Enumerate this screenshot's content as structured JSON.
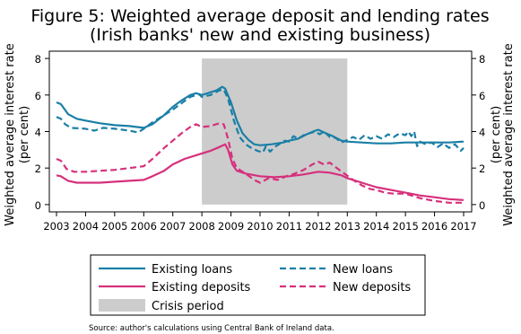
{
  "chart_data": {
    "type": "line",
    "title": "Figure 5: Weighted average deposit and lending rates",
    "subtitle": "(Irish banks' new and existing business)",
    "ylabel_left": "Weighted average interest rate",
    "ylabel_left_unit": "(per cent)",
    "ylabel_right": "Weighted average interest rate",
    "ylabel_right_unit": "(per cent)",
    "xlim": [
      2003,
      2017
    ],
    "ylim": [
      -0.4,
      8.4
    ],
    "y_ticks": [
      0,
      2,
      4,
      6,
      8
    ],
    "x_ticks": [
      2003,
      2004,
      2005,
      2006,
      2007,
      2008,
      2009,
      2010,
      2011,
      2012,
      2013,
      2014,
      2015,
      2016,
      2017
    ],
    "grid": false,
    "shaded_region": {
      "label": "Crisis period",
      "x": [
        2008,
        2013
      ],
      "y": [
        0,
        8
      ],
      "color": "#cccccc"
    },
    "legend_position": "bottom",
    "series": [
      {
        "name": "Existing loans",
        "color": "#1a7fa6",
        "dash": false,
        "points": [
          [
            2003.0,
            5.6
          ],
          [
            2003.15,
            5.5
          ],
          [
            2003.4,
            4.95
          ],
          [
            2003.7,
            4.7
          ],
          [
            2004.0,
            4.6
          ],
          [
            2004.5,
            4.45
          ],
          [
            2005.0,
            4.35
          ],
          [
            2005.5,
            4.3
          ],
          [
            2006.0,
            4.2
          ],
          [
            2006.3,
            4.4
          ],
          [
            2006.7,
            4.9
          ],
          [
            2007.0,
            5.35
          ],
          [
            2007.3,
            5.7
          ],
          [
            2007.6,
            6.0
          ],
          [
            2007.8,
            6.1
          ],
          [
            2008.0,
            6.0
          ],
          [
            2008.2,
            6.1
          ],
          [
            2008.5,
            6.25
          ],
          [
            2008.7,
            6.45
          ],
          [
            2008.8,
            6.35
          ],
          [
            2009.0,
            5.6
          ],
          [
            2009.2,
            4.6
          ],
          [
            2009.4,
            3.9
          ],
          [
            2009.6,
            3.55
          ],
          [
            2009.8,
            3.3
          ],
          [
            2010.0,
            3.25
          ],
          [
            2010.4,
            3.3
          ],
          [
            2010.8,
            3.4
          ],
          [
            2011.0,
            3.5
          ],
          [
            2011.3,
            3.6
          ],
          [
            2011.6,
            3.85
          ],
          [
            2011.9,
            4.05
          ],
          [
            2012.0,
            4.1
          ],
          [
            2012.2,
            3.95
          ],
          [
            2012.5,
            3.75
          ],
          [
            2012.8,
            3.5
          ],
          [
            2013.0,
            3.45
          ],
          [
            2013.5,
            3.4
          ],
          [
            2014.0,
            3.35
          ],
          [
            2014.5,
            3.35
          ],
          [
            2015.0,
            3.4
          ],
          [
            2015.5,
            3.4
          ],
          [
            2016.0,
            3.4
          ],
          [
            2016.5,
            3.4
          ],
          [
            2017.0,
            3.45
          ]
        ]
      },
      {
        "name": "New loans",
        "color": "#1a7fa6",
        "dash": true,
        "points": [
          [
            2003.0,
            4.8
          ],
          [
            2003.15,
            4.7
          ],
          [
            2003.3,
            4.4
          ],
          [
            2003.5,
            4.2
          ],
          [
            2004.0,
            4.15
          ],
          [
            2004.3,
            4.05
          ],
          [
            2004.6,
            4.2
          ],
          [
            2005.0,
            4.15
          ],
          [
            2005.5,
            4.05
          ],
          [
            2005.8,
            3.95
          ],
          [
            2006.0,
            4.15
          ],
          [
            2006.3,
            4.5
          ],
          [
            2006.7,
            4.9
          ],
          [
            2007.0,
            5.2
          ],
          [
            2007.3,
            5.55
          ],
          [
            2007.6,
            5.9
          ],
          [
            2007.9,
            6.05
          ],
          [
            2008.0,
            5.9
          ],
          [
            2008.3,
            6.0
          ],
          [
            2008.6,
            6.25
          ],
          [
            2008.75,
            6.3
          ],
          [
            2008.9,
            5.8
          ],
          [
            2009.1,
            4.6
          ],
          [
            2009.3,
            3.7
          ],
          [
            2009.5,
            3.3
          ],
          [
            2009.7,
            3.1
          ],
          [
            2009.9,
            2.95
          ],
          [
            2010.1,
            2.85
          ],
          [
            2010.2,
            3.2
          ],
          [
            2010.35,
            2.9
          ],
          [
            2010.5,
            3.15
          ],
          [
            2010.7,
            3.35
          ],
          [
            2010.85,
            3.5
          ],
          [
            2011.0,
            3.45
          ],
          [
            2011.15,
            3.75
          ],
          [
            2011.3,
            3.6
          ],
          [
            2011.5,
            3.8
          ],
          [
            2011.7,
            3.9
          ],
          [
            2011.9,
            4.0
          ],
          [
            2012.05,
            3.85
          ],
          [
            2012.2,
            4.0
          ],
          [
            2012.4,
            3.7
          ],
          [
            2012.6,
            3.65
          ],
          [
            2012.8,
            3.4
          ],
          [
            2013.0,
            3.55
          ],
          [
            2013.2,
            3.7
          ],
          [
            2013.4,
            3.55
          ],
          [
            2013.6,
            3.8
          ],
          [
            2013.8,
            3.6
          ],
          [
            2014.0,
            3.75
          ],
          [
            2014.2,
            3.6
          ],
          [
            2014.4,
            3.85
          ],
          [
            2014.6,
            3.7
          ],
          [
            2014.8,
            3.9
          ],
          [
            2015.0,
            3.8
          ],
          [
            2015.1,
            4.0
          ],
          [
            2015.2,
            3.75
          ],
          [
            2015.3,
            4.0
          ],
          [
            2015.4,
            3.2
          ],
          [
            2015.5,
            3.45
          ],
          [
            2015.7,
            3.3
          ],
          [
            2015.9,
            3.4
          ],
          [
            2016.1,
            3.15
          ],
          [
            2016.3,
            3.35
          ],
          [
            2016.5,
            3.1
          ],
          [
            2016.7,
            3.3
          ],
          [
            2016.9,
            2.95
          ],
          [
            2017.0,
            3.1
          ]
        ]
      },
      {
        "name": "Existing deposits",
        "color": "#d6307c",
        "dash": false,
        "points": [
          [
            2003.0,
            1.6
          ],
          [
            2003.15,
            1.55
          ],
          [
            2003.4,
            1.3
          ],
          [
            2003.7,
            1.2
          ],
          [
            2004.0,
            1.2
          ],
          [
            2004.5,
            1.2
          ],
          [
            2005.0,
            1.25
          ],
          [
            2005.5,
            1.3
          ],
          [
            2006.0,
            1.35
          ],
          [
            2006.3,
            1.55
          ],
          [
            2006.7,
            1.85
          ],
          [
            2007.0,
            2.2
          ],
          [
            2007.4,
            2.5
          ],
          [
            2007.8,
            2.7
          ],
          [
            2008.0,
            2.8
          ],
          [
            2008.3,
            2.95
          ],
          [
            2008.6,
            3.15
          ],
          [
            2008.8,
            3.3
          ],
          [
            2008.9,
            3.0
          ],
          [
            2009.05,
            2.2
          ],
          [
            2009.2,
            1.85
          ],
          [
            2009.5,
            1.7
          ],
          [
            2010.0,
            1.55
          ],
          [
            2010.5,
            1.5
          ],
          [
            2011.0,
            1.55
          ],
          [
            2011.5,
            1.65
          ],
          [
            2012.0,
            1.8
          ],
          [
            2012.4,
            1.75
          ],
          [
            2012.8,
            1.6
          ],
          [
            2013.0,
            1.45
          ],
          [
            2013.3,
            1.3
          ],
          [
            2013.6,
            1.15
          ],
          [
            2014.0,
            0.95
          ],
          [
            2014.5,
            0.8
          ],
          [
            2015.0,
            0.65
          ],
          [
            2015.5,
            0.5
          ],
          [
            2016.0,
            0.4
          ],
          [
            2016.5,
            0.3
          ],
          [
            2017.0,
            0.25
          ]
        ]
      },
      {
        "name": "New deposits",
        "color": "#d6307c",
        "dash": true,
        "points": [
          [
            2003.0,
            2.5
          ],
          [
            2003.15,
            2.4
          ],
          [
            2003.35,
            1.95
          ],
          [
            2003.6,
            1.8
          ],
          [
            2004.0,
            1.8
          ],
          [
            2004.5,
            1.85
          ],
          [
            2005.0,
            1.9
          ],
          [
            2005.5,
            2.0
          ],
          [
            2006.0,
            2.1
          ],
          [
            2006.3,
            2.5
          ],
          [
            2006.7,
            3.1
          ],
          [
            2007.0,
            3.5
          ],
          [
            2007.3,
            3.9
          ],
          [
            2007.6,
            4.25
          ],
          [
            2007.8,
            4.4
          ],
          [
            2008.0,
            4.25
          ],
          [
            2008.3,
            4.3
          ],
          [
            2008.6,
            4.45
          ],
          [
            2008.75,
            4.4
          ],
          [
            2008.9,
            3.6
          ],
          [
            2009.05,
            2.5
          ],
          [
            2009.2,
            2.0
          ],
          [
            2009.5,
            1.7
          ],
          [
            2009.8,
            1.35
          ],
          [
            2010.0,
            1.2
          ],
          [
            2010.3,
            1.45
          ],
          [
            2010.6,
            1.35
          ],
          [
            2010.9,
            1.55
          ],
          [
            2011.2,
            1.7
          ],
          [
            2011.5,
            1.9
          ],
          [
            2011.8,
            2.2
          ],
          [
            2012.0,
            2.35
          ],
          [
            2012.2,
            2.2
          ],
          [
            2012.4,
            2.3
          ],
          [
            2012.6,
            2.05
          ],
          [
            2012.9,
            1.7
          ],
          [
            2013.2,
            1.35
          ],
          [
            2013.5,
            1.05
          ],
          [
            2013.8,
            0.85
          ],
          [
            2014.0,
            0.8
          ],
          [
            2014.3,
            0.65
          ],
          [
            2014.6,
            0.6
          ],
          [
            2015.0,
            0.6
          ],
          [
            2015.5,
            0.35
          ],
          [
            2016.0,
            0.2
          ],
          [
            2016.5,
            0.1
          ],
          [
            2017.0,
            0.1
          ]
        ]
      }
    ]
  },
  "source": "Source: author's calculations using Central Bank of Ireland data."
}
